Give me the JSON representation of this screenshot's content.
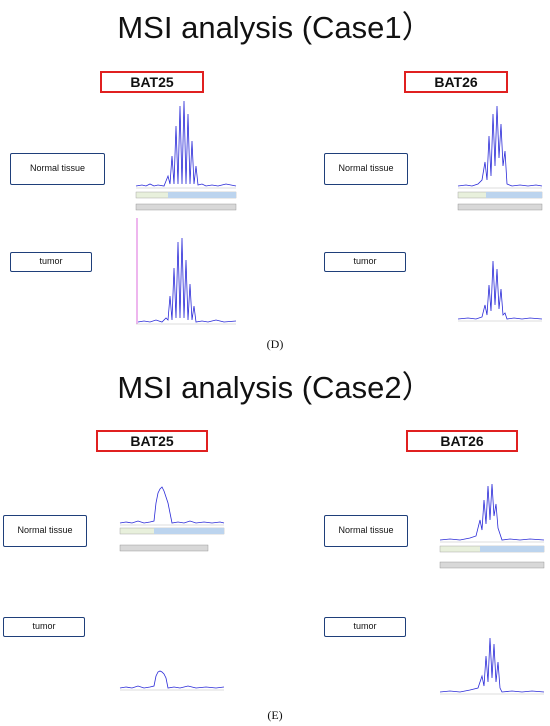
{
  "panels": [
    {
      "title": "MSI analysis (Case1）",
      "label": "(D)",
      "markers": [
        "BAT25",
        "BAT26"
      ],
      "rows": [
        "Normal tissue",
        "tumor"
      ]
    },
    {
      "title": "MSI analysis (Case2）",
      "label": "(E)",
      "markers": [
        "BAT25",
        "BAT26"
      ],
      "rows": [
        "Normal tissue",
        "tumor"
      ]
    }
  ],
  "colors": {
    "gene_box": "#e02020",
    "row_box": "#1f3f7a",
    "trace": "#2b2bd8"
  }
}
